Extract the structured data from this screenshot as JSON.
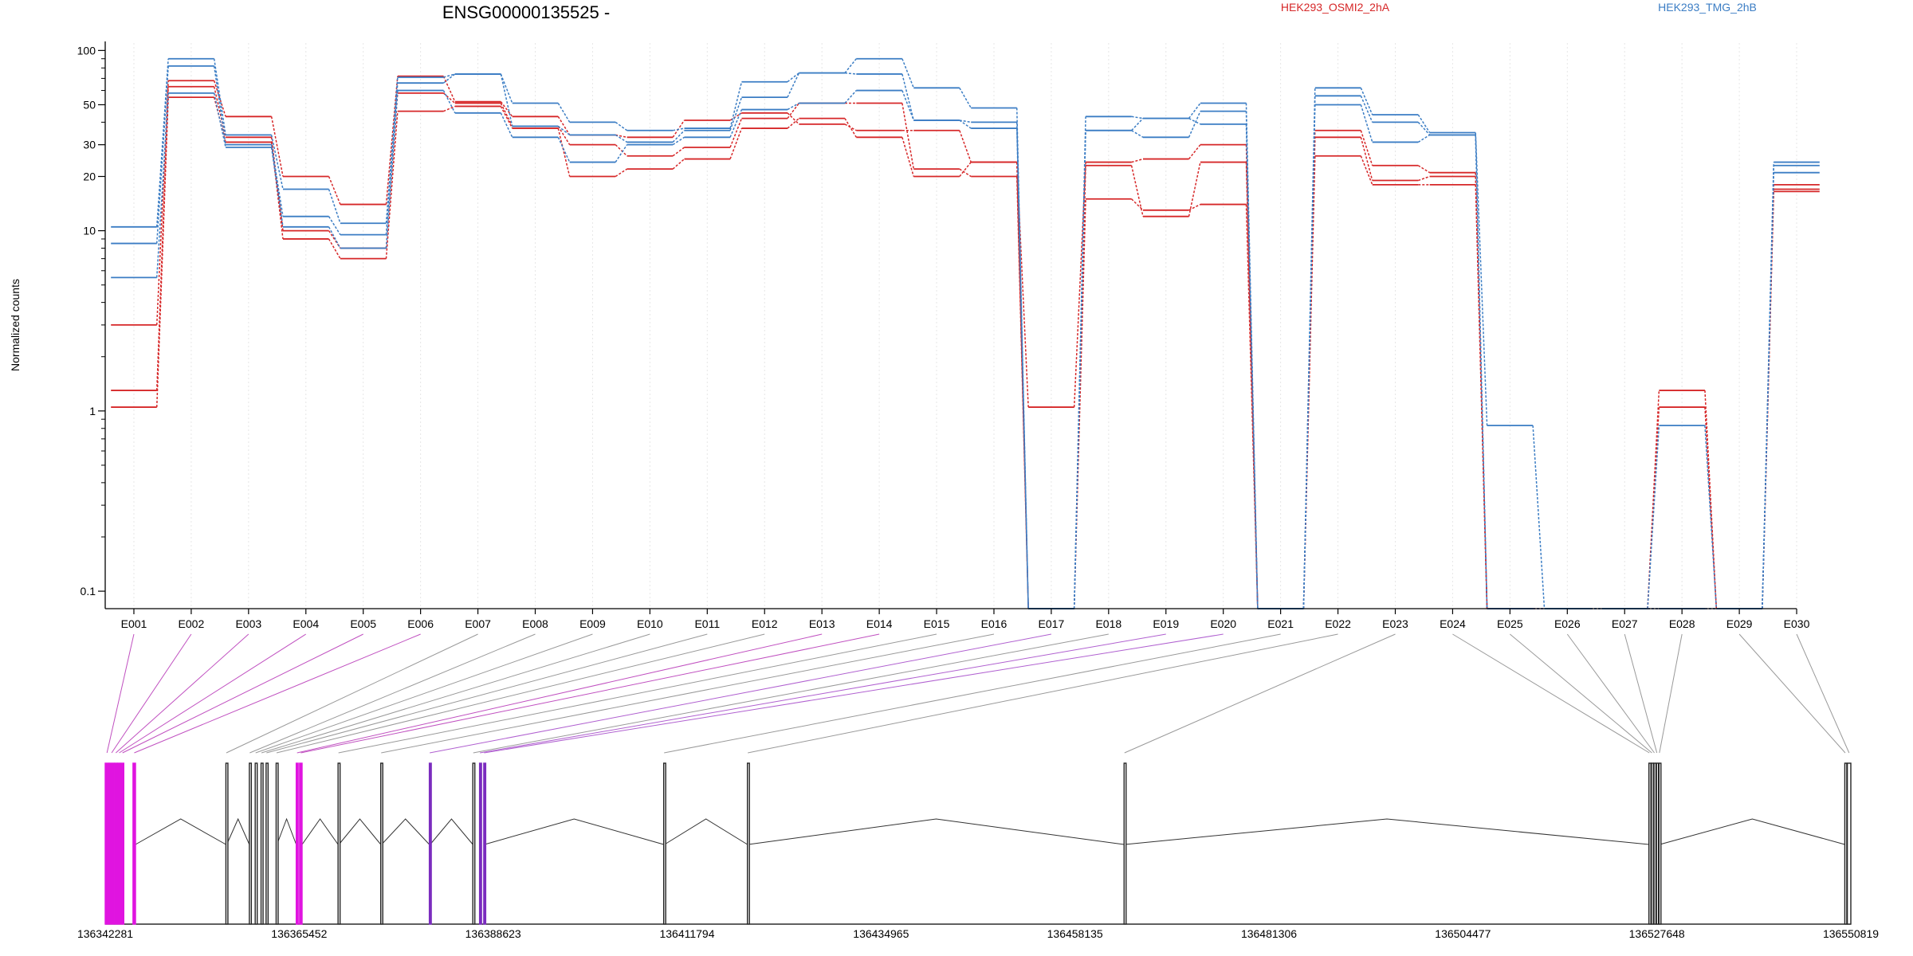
{
  "title": "ENSG00000135525 -",
  "legend": [
    {
      "name": "HEK293_OSMI2_2hA",
      "color": "#d62728"
    },
    {
      "name": "HEK293_TMG_2hB",
      "color": "#3b7dc4"
    }
  ],
  "colors": {
    "red": "#d62728",
    "blue": "#3b7dc4",
    "magenta": "#e014e0",
    "purple": "#7b2cbf",
    "grey": "#999999",
    "dark": "#222222"
  },
  "chart_data": {
    "type": "line",
    "title": "ENSG00000135525 -",
    "ylabel": "Normalized counts",
    "yscale": "log",
    "ylim": [
      0.08,
      110
    ],
    "yticks": [
      0.1,
      1,
      10,
      20,
      30,
      50,
      100
    ],
    "ytick_labels": [
      "0.1",
      "1",
      "10",
      "20",
      "30",
      "50",
      "100"
    ],
    "categories": [
      "E001",
      "E002",
      "E003",
      "E004",
      "E005",
      "E006",
      "E007",
      "E008",
      "E009",
      "E010",
      "E011",
      "E012",
      "E013",
      "E014",
      "E015",
      "E016",
      "E017",
      "E018",
      "E019",
      "E020",
      "E021",
      "E022",
      "E023",
      "E024",
      "E025",
      "E026",
      "E027",
      "E028",
      "E029",
      "E030"
    ],
    "series": [
      {
        "group": "HEK293_OSMI2_2hA",
        "color": "red",
        "values": [
          3,
          68,
          43,
          20,
          14,
          72,
          52,
          43,
          34,
          33,
          41,
          45,
          39,
          36,
          36,
          24,
          1.05,
          24,
          25,
          30,
          0.08,
          36,
          23,
          21,
          0.08,
          0.08,
          0.08,
          1.3,
          0.08,
          18
        ]
      },
      {
        "group": "HEK293_OSMI2_2hA",
        "color": "red",
        "values": [
          1.3,
          63,
          33,
          10,
          8,
          58,
          51,
          38,
          30,
          26,
          29,
          42,
          51,
          51,
          22,
          20,
          0.08,
          23,
          12,
          24,
          0.08,
          33,
          19,
          20,
          0.08,
          0.08,
          0.08,
          1.05,
          0.08,
          17
        ]
      },
      {
        "group": "HEK293_OSMI2_2hA",
        "color": "red",
        "values": [
          1.05,
          55,
          31,
          9,
          7,
          46,
          49,
          37,
          20,
          22,
          25,
          37,
          42,
          33,
          20,
          24,
          0.08,
          15,
          13,
          14,
          0.08,
          26,
          18,
          18,
          0.08,
          0.08,
          0.08,
          0.08,
          0.08,
          16.5
        ]
      },
      {
        "group": "HEK293_TMG_2hB",
        "color": "blue",
        "values": [
          10.5,
          90,
          34,
          17,
          11,
          71,
          74,
          51,
          40,
          36,
          37,
          67,
          75,
          90,
          62,
          48,
          0.08,
          43,
          42,
          51,
          0.08,
          62,
          44,
          35,
          0.83,
          0.08,
          0.08,
          0.83,
          0.08,
          24
        ]
      },
      {
        "group": "HEK293_TMG_2hB",
        "color": "blue",
        "values": [
          8.5,
          82,
          30,
          12,
          9.5,
          66,
          74,
          38,
          34,
          31,
          36,
          55,
          75,
          74,
          41,
          40,
          0.08,
          36,
          42,
          39,
          0.08,
          56,
          40,
          34,
          0.08,
          0.08,
          0.08,
          0.08,
          0.08,
          23
        ]
      },
      {
        "group": "HEK293_TMG_2hB",
        "color": "blue",
        "values": [
          5.5,
          58,
          29,
          10.5,
          8,
          60,
          45,
          33,
          24,
          30,
          33,
          47,
          51,
          60,
          41,
          37,
          0.08,
          36,
          33,
          46,
          0.08,
          50,
          31,
          34,
          0.08,
          0.08,
          0.08,
          0.08,
          0.08,
          21
        ]
      }
    ]
  },
  "gene_model": {
    "genomic_range": [
      136342281,
      136550819
    ],
    "tick_labels": [
      "136342281",
      "136365452",
      "136388623",
      "136411794",
      "136434965",
      "136458135",
      "136481306",
      "136504477",
      "136527648",
      "136550819"
    ],
    "exons": [
      {
        "id": "E001",
        "start": 136342281,
        "end": 136342700,
        "color": "magenta"
      },
      {
        "id": "E002",
        "start": 136342800,
        "end": 136343300,
        "color": "magenta"
      },
      {
        "id": "E003",
        "start": 136343400,
        "end": 136343700,
        "color": "magenta"
      },
      {
        "id": "E004",
        "start": 136343800,
        "end": 136344100,
        "color": "magenta"
      },
      {
        "id": "E005",
        "start": 136344200,
        "end": 136344500,
        "color": "magenta"
      },
      {
        "id": "E006",
        "start": 136345600,
        "end": 136345900,
        "color": "magenta"
      },
      {
        "id": "E007",
        "start": 136356700,
        "end": 136356800,
        "color": "dark"
      },
      {
        "id": "E008",
        "start": 136359500,
        "end": 136359600,
        "color": "dark"
      },
      {
        "id": "E009",
        "start": 136360200,
        "end": 136360300,
        "color": "dark"
      },
      {
        "id": "E010",
        "start": 136360900,
        "end": 136361000,
        "color": "dark"
      },
      {
        "id": "E011",
        "start": 136361500,
        "end": 136361600,
        "color": "dark"
      },
      {
        "id": "E012",
        "start": 136362700,
        "end": 136362800,
        "color": "dark"
      },
      {
        "id": "E013",
        "start": 136365100,
        "end": 136365300,
        "color": "magenta"
      },
      {
        "id": "E014",
        "start": 136365500,
        "end": 136365800,
        "color": "magenta"
      },
      {
        "id": "E015",
        "start": 136370100,
        "end": 136370200,
        "color": "dark"
      },
      {
        "id": "E016",
        "start": 136375200,
        "end": 136375300,
        "color": "dark"
      },
      {
        "id": "E017",
        "start": 136381000,
        "end": 136381100,
        "color": "purple"
      },
      {
        "id": "E018",
        "start": 136386200,
        "end": 136386300,
        "color": "dark"
      },
      {
        "id": "E019",
        "start": 136387000,
        "end": 136387100,
        "color": "purple"
      },
      {
        "id": "E020",
        "start": 136387500,
        "end": 136387600,
        "color": "purple"
      },
      {
        "id": "E021",
        "start": 136409000,
        "end": 136409100,
        "color": "dark"
      },
      {
        "id": "E022",
        "start": 136419000,
        "end": 136419100,
        "color": "dark"
      },
      {
        "id": "E023",
        "start": 136464000,
        "end": 136464100,
        "color": "dark"
      },
      {
        "id": "E024",
        "start": 136526700,
        "end": 136526800,
        "color": "dark"
      },
      {
        "id": "E025",
        "start": 136527000,
        "end": 136527100,
        "color": "dark"
      },
      {
        "id": "E026",
        "start": 136527300,
        "end": 136527400,
        "color": "dark"
      },
      {
        "id": "E027",
        "start": 136527600,
        "end": 136527700,
        "color": "dark"
      },
      {
        "id": "E028",
        "start": 136527900,
        "end": 136528000,
        "color": "dark"
      },
      {
        "id": "E029",
        "start": 136550100,
        "end": 136550200,
        "color": "dark"
      },
      {
        "id": "E030",
        "start": 136550400,
        "end": 136550819,
        "color": "dark"
      }
    ]
  }
}
